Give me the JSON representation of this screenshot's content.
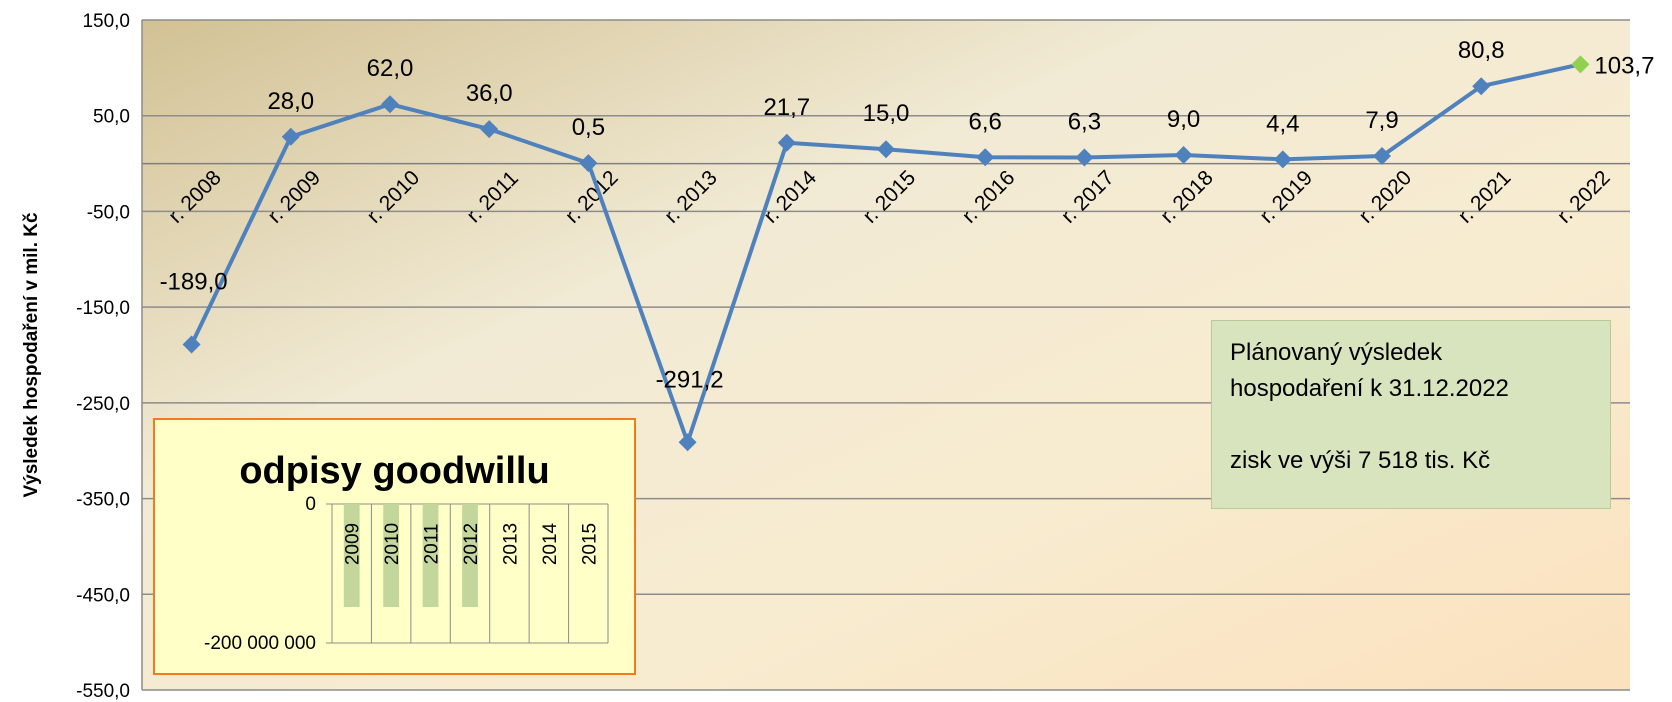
{
  "chart_data": {
    "type": "line",
    "ylabel": "Výsledek hospodaření v mil. Kč",
    "ylim": [
      -550,
      150
    ],
    "yticks": [
      150,
      50,
      -50,
      -150,
      -250,
      -350,
      -450,
      -550
    ],
    "ytick_labels": [
      "150,0",
      "50,0",
      "-50,0",
      "-150,0",
      "-250,0",
      "-350,0",
      "-450,0",
      "-550,0"
    ],
    "categories": [
      "r. 2008",
      "r. 2009",
      "r. 2010",
      "r. 2011",
      "r. 2012",
      "r. 2013",
      "r. 2014",
      "r. 2015",
      "r. 2016",
      "r. 2017",
      "r. 2018",
      "r. 2019",
      "r. 2020",
      "r. 2021",
      "r. 2022"
    ],
    "values": [
      -189.0,
      28.0,
      62.0,
      36.0,
      0.5,
      -291.2,
      21.7,
      15.0,
      6.6,
      6.3,
      9.0,
      4.4,
      7.9,
      80.8,
      103.7
    ],
    "value_labels": [
      "-189,0",
      "28,0",
      "62,0",
      "36,0",
      "0,5",
      "-291,2",
      "21,7",
      "15,0",
      "6,6",
      "6,3",
      "9,0",
      "4,4",
      "7,9",
      "80,8",
      "103,7"
    ],
    "grid": true,
    "line_color": "#4f81bd",
    "highlight_color": "#92d050",
    "highlight_index": 14
  },
  "note": {
    "line1": "Plánovaný výsledek",
    "line2": "hospodaření k 31.12.2022",
    "line3": "zisk ve výši  7 518 tis. Kč"
  },
  "inset": {
    "title": "odpisy goodwillu",
    "type": "bar",
    "ytick_labels": [
      "0",
      "-200 000 000"
    ],
    "categories": [
      "2009",
      "2010",
      "2011",
      "2012",
      "2013",
      "2014",
      "2015"
    ],
    "bar_color": "#c3d69b",
    "highlighted": [
      true,
      true,
      true,
      true,
      false,
      false,
      false
    ]
  }
}
